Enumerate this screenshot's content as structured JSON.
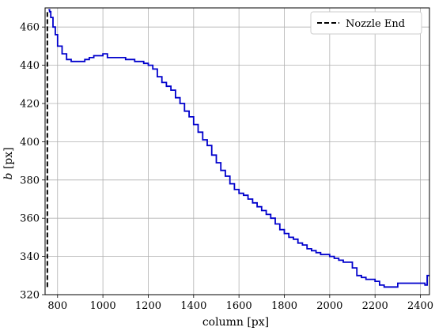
{
  "chart_data": {
    "type": "line",
    "title": "",
    "xlabel": "column [px]",
    "ylabel_prefix": "b",
    "ylabel_suffix": " [px]",
    "xlim": [
      745,
      2440
    ],
    "ylim": [
      320,
      470
    ],
    "xticks": [
      800,
      1000,
      1200,
      1400,
      1600,
      1800,
      2000,
      2200,
      2400
    ],
    "yticks": [
      320,
      340,
      360,
      380,
      400,
      420,
      440,
      460
    ],
    "grid": true,
    "legend_position": "top-right",
    "legend": [
      {
        "label": "Nozzle End",
        "style": "dashed",
        "color": "#000000"
      }
    ],
    "nozzle_end": {
      "x": 755,
      "y_range": [
        324,
        469
      ]
    },
    "series": [
      {
        "color": "#0000cc",
        "x": [
          760,
          765,
          770,
          780,
          790,
          800,
          820,
          840,
          860,
          880,
          900,
          920,
          940,
          960,
          980,
          1000,
          1020,
          1060,
          1100,
          1140,
          1180,
          1200,
          1220,
          1240,
          1260,
          1280,
          1300,
          1320,
          1340,
          1360,
          1380,
          1400,
          1420,
          1440,
          1460,
          1480,
          1500,
          1520,
          1540,
          1560,
          1580,
          1600,
          1620,
          1640,
          1660,
          1680,
          1700,
          1720,
          1740,
          1760,
          1780,
          1800,
          1820,
          1840,
          1860,
          1880,
          1900,
          1920,
          1940,
          1960,
          1980,
          2000,
          2020,
          2040,
          2060,
          2080,
          2100,
          2120,
          2140,
          2160,
          2180,
          2200,
          2220,
          2240,
          2260,
          2280,
          2300,
          2320,
          2340,
          2360,
          2380,
          2400,
          2420,
          2430,
          2440
        ],
        "y": [
          469,
          468,
          465,
          460,
          456,
          450,
          446,
          443,
          442,
          442,
          442,
          443,
          444,
          445,
          445,
          446,
          444,
          444,
          443,
          442,
          441,
          440,
          438,
          434,
          431,
          429,
          427,
          423,
          420,
          416,
          413,
          409,
          405,
          401,
          398,
          393,
          389,
          385,
          382,
          378,
          375,
          373,
          372,
          370,
          368,
          366,
          364,
          362,
          360,
          357,
          354,
          352,
          350,
          349,
          347,
          346,
          344,
          343,
          342,
          341,
          341,
          340,
          339,
          338,
          337,
          337,
          334,
          330,
          329,
          328,
          328,
          327,
          325,
          324,
          324,
          324,
          326,
          326,
          326,
          326,
          326,
          326,
          325,
          330,
          330
        ]
      }
    ]
  }
}
